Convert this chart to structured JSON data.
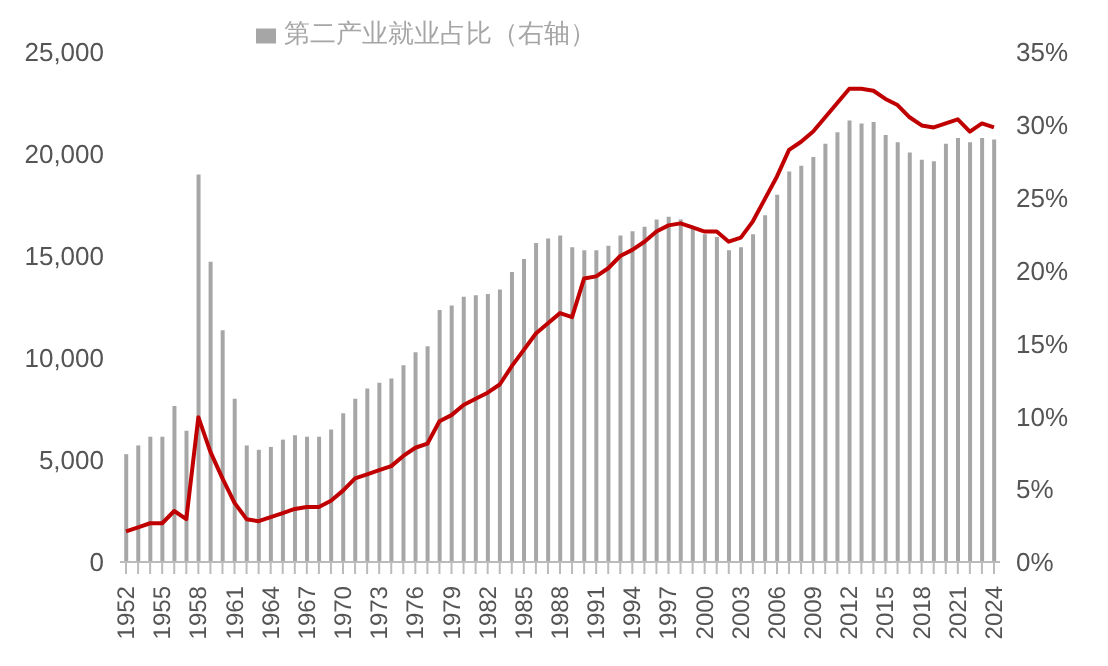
{
  "chart_data": {
    "type": "bar",
    "categories": [
      "1952",
      null,
      null,
      "1955",
      null,
      null,
      "1958",
      null,
      null,
      "1961",
      null,
      null,
      "1964",
      null,
      null,
      "1967",
      null,
      null,
      "1970",
      null,
      null,
      "1973",
      null,
      null,
      "1976",
      null,
      null,
      "1979",
      null,
      null,
      "1982",
      null,
      null,
      "1985",
      null,
      null,
      "1988",
      null,
      null,
      "1991",
      null,
      null,
      "1994",
      null,
      null,
      "1997",
      null,
      null,
      "2000",
      null,
      null,
      "2003",
      null,
      null,
      "2006",
      null,
      null,
      "2009",
      null,
      null,
      "2012",
      null,
      null,
      "2015",
      null,
      null,
      "2018",
      null,
      null,
      "2021",
      null,
      null,
      "2024"
    ],
    "series": [
      {
        "name": "第二产业就业占比（右轴）",
        "axis": "y2",
        "color": "#a6a6a6",
        "values": [
          7.4,
          8.0,
          8.6,
          8.6,
          10.7,
          9.0,
          26.6,
          20.6,
          15.9,
          11.2,
          8.0,
          7.7,
          7.9,
          8.4,
          8.7,
          8.6,
          8.6,
          9.1,
          10.2,
          11.2,
          11.9,
          12.3,
          12.6,
          13.5,
          14.4,
          14.8,
          17.3,
          17.6,
          18.2,
          18.3,
          18.4,
          18.7,
          19.9,
          20.8,
          21.9,
          22.2,
          22.4,
          21.6,
          21.4,
          21.4,
          21.7,
          22.4,
          22.7,
          23.0,
          23.5,
          23.7,
          23.5,
          23.0,
          22.5,
          22.3,
          21.4,
          21.6,
          22.5,
          23.8,
          25.2,
          26.8,
          27.2,
          27.8,
          28.7,
          29.5,
          30.3,
          30.1,
          30.2,
          29.3,
          28.8,
          28.1,
          27.6,
          27.5,
          28.7,
          29.1,
          28.8,
          29.1,
          29.0
        ]
      },
      {
        "type": "line",
        "color": "#c00000",
        "values": [
          1500,
          1700,
          1900,
          1900,
          2500,
          2100,
          7100,
          5400,
          4100,
          2900,
          2100,
          2000,
          2200,
          2400,
          2600,
          2700,
          2700,
          3000,
          3500,
          4100,
          4300,
          4500,
          4700,
          5200,
          5600,
          5800,
          6900,
          7200,
          7700,
          8000,
          8300,
          8700,
          9600,
          10400,
          11200,
          11700,
          12200,
          12000,
          13900,
          14000,
          14400,
          15000,
          15300,
          15700,
          16200,
          16500,
          16600,
          16400,
          16200,
          16200,
          15700,
          15900,
          16700,
          17800,
          18900,
          20200,
          20600,
          21100,
          21800,
          22500,
          23200,
          23200,
          23100,
          22700,
          22400,
          21800,
          21400,
          21300,
          21500,
          21700,
          21100,
          21500,
          21300
        ]
      }
    ],
    "ylim": [
      0,
      25000
    ],
    "yticks": [
      {
        "value": 0,
        "label": "0"
      },
      {
        "value": 5000,
        "label": "5,000"
      },
      {
        "value": 10000,
        "label": "10,000"
      },
      {
        "value": 15000,
        "label": "15,000"
      },
      {
        "value": 20000,
        "label": "20,000"
      },
      {
        "value": 25000,
        "label": "25,000"
      }
    ],
    "y2lim": [
      0,
      35
    ],
    "y2ticks": [
      {
        "value": 0,
        "label": "0%"
      },
      {
        "value": 5,
        "label": "5%"
      },
      {
        "value": 10,
        "label": "10%"
      },
      {
        "value": 15,
        "label": "15%"
      },
      {
        "value": 20,
        "label": "20%"
      },
      {
        "value": 25,
        "label": "25%"
      },
      {
        "value": 30,
        "label": "30%"
      },
      {
        "value": 35,
        "label": "35%"
      }
    ],
    "legend": "top",
    "grid": false,
    "marker": "none",
    "line_style": "solid"
  }
}
